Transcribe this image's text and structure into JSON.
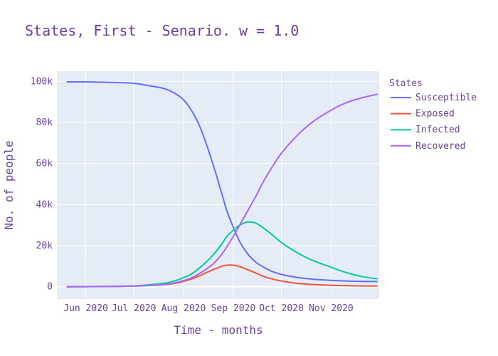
{
  "chart_data": {
    "type": "line",
    "title": "States, First - Senario. w = 1.0",
    "xlabel": "Time - months",
    "ylabel": "No. of people",
    "legend_title": "States",
    "legend_position": "right",
    "grid": true,
    "x_ticks": [
      "Jun 2020",
      "Jul 2020",
      "Aug 2020",
      "Sep 2020",
      "Oct 2020",
      "Nov 2020"
    ],
    "y_ticks": [
      0,
      20000,
      40000,
      60000,
      80000,
      100000
    ],
    "y_tick_labels": [
      "0",
      "20k",
      "40k",
      "60k",
      "80k",
      "100k"
    ],
    "ylim": [
      -6000,
      105000
    ],
    "x": [
      "2020-05-20",
      "2020-06-01",
      "2020-06-15",
      "2020-07-01",
      "2020-07-10",
      "2020-07-20",
      "2020-07-27",
      "2020-08-01",
      "2020-08-05",
      "2020-08-10",
      "2020-08-15",
      "2020-08-20",
      "2020-08-25",
      "2020-08-28",
      "2020-09-01",
      "2020-09-05",
      "2020-09-10",
      "2020-09-15",
      "2020-09-20",
      "2020-09-25",
      "2020-10-01",
      "2020-10-10",
      "2020-10-20",
      "2020-11-01",
      "2020-11-10",
      "2020-11-20",
      "2020-11-30"
    ],
    "series": [
      {
        "name": "Susceptible",
        "color": "#636efa",
        "values": [
          99800,
          99800,
          99600,
          99100,
          98000,
          96500,
          94000,
          91000,
          87000,
          80000,
          70000,
          58000,
          45000,
          37000,
          29000,
          22000,
          16000,
          12000,
          9500,
          7500,
          6000,
          4600,
          3700,
          3100,
          2800,
          2600,
          2500
        ]
      },
      {
        "name": "Exposed",
        "color": "#ef553b",
        "values": [
          0,
          50,
          100,
          300,
          600,
          1000,
          1700,
          2600,
          3500,
          5000,
          6800,
          8500,
          10000,
          10500,
          10500,
          9800,
          8300,
          6700,
          5000,
          3800,
          2800,
          1700,
          1100,
          700,
          500,
          400,
          300
        ]
      },
      {
        "name": "Infected",
        "color": "#00cc96",
        "values": [
          0,
          50,
          100,
          400,
          900,
          1700,
          3000,
          4400,
          5800,
          8500,
          12000,
          16000,
          21000,
          24500,
          27500,
          30000,
          31500,
          31000,
          28500,
          25500,
          21500,
          17000,
          13000,
          9500,
          7000,
          5000,
          3800
        ]
      },
      {
        "name": "Recovered",
        "color": "#ab63fa",
        "values": [
          0,
          50,
          100,
          300,
          600,
          1100,
          2000,
          3000,
          4000,
          6000,
          8500,
          11500,
          16000,
          19500,
          24500,
          30000,
          37000,
          44000,
          51500,
          58000,
          65000,
          73000,
          80000,
          86000,
          89500,
          92000,
          93800
        ]
      }
    ]
  }
}
